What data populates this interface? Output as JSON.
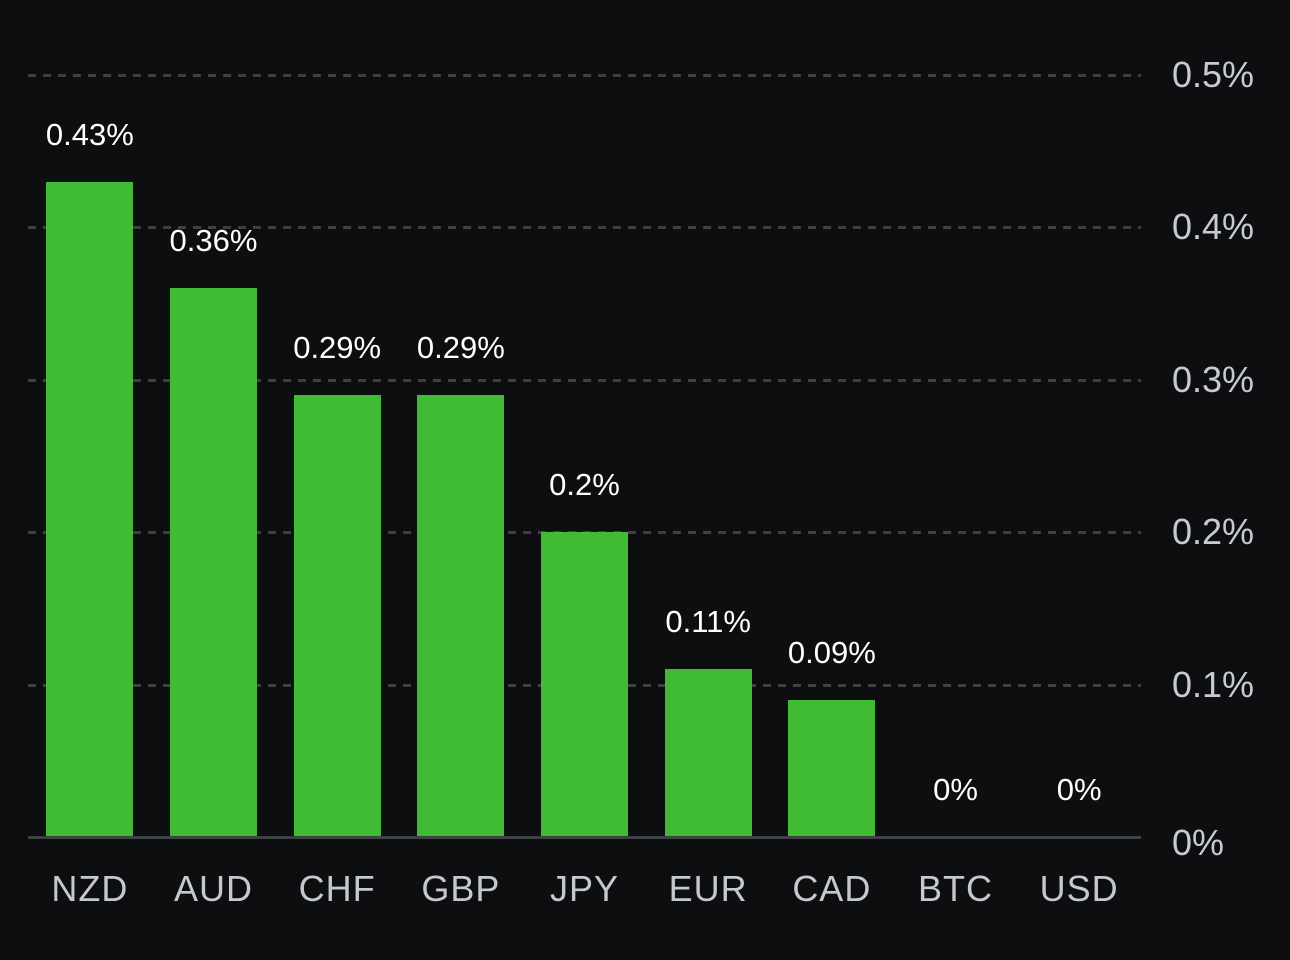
{
  "chart_data": {
    "type": "bar",
    "title": "",
    "categories": [
      "NZD",
      "AUD",
      "CHF",
      "GBP",
      "JPY",
      "EUR",
      "CAD",
      "BTC",
      "USD"
    ],
    "values": [
      0.43,
      0.36,
      0.29,
      0.29,
      0.2,
      0.11,
      0.09,
      0,
      0
    ],
    "value_labels": [
      "0.43%",
      "0.36%",
      "0.29%",
      "0.29%",
      "0.2%",
      "0.11%",
      "0.09%",
      "0%",
      "0%"
    ],
    "xlabel": "",
    "ylabel": "",
    "ylim": [
      0,
      0.5
    ],
    "y_ticks": [
      0,
      0.1,
      0.2,
      0.3,
      0.4,
      0.5
    ],
    "y_tick_labels": [
      "0%",
      "0.1%",
      "0.2%",
      "0.3%",
      "0.4%",
      "0.5%"
    ],
    "grid": "horizontal-dashed",
    "legend": "none",
    "colors": {
      "background": "#0D0E10",
      "bar": "#3FBC33",
      "value_label": "#FFFFFF",
      "axis_tick_label": "#C7CAD0",
      "x_label": "#C5C8CD",
      "gridline": "#3E4043",
      "axis_line": "#3F4245"
    }
  }
}
